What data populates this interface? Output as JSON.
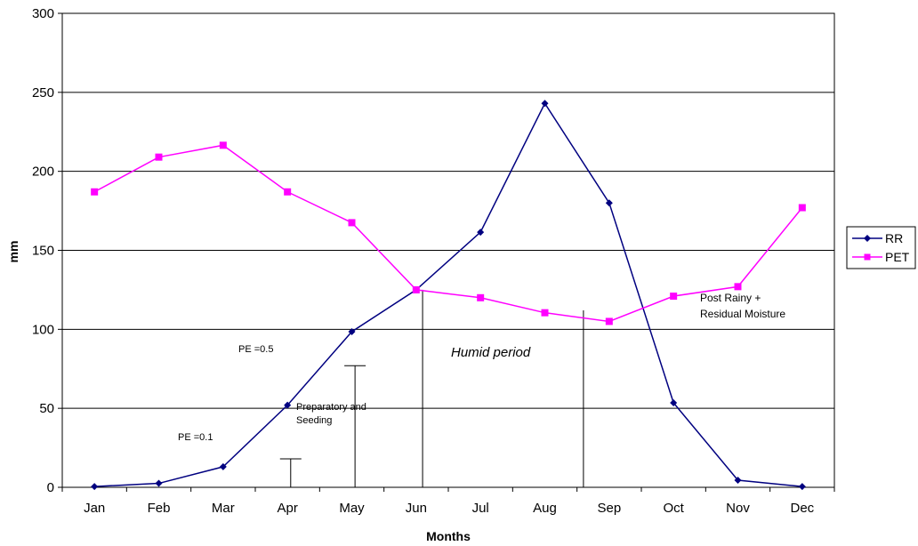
{
  "chart_data": {
    "type": "line",
    "title": "",
    "xlabel": "Months",
    "ylabel": "mm",
    "ylim": [
      0,
      300
    ],
    "yticks": [
      0,
      50,
      100,
      150,
      200,
      250,
      300
    ],
    "grid": "horizontal",
    "legend_position": "right",
    "categories": [
      "Jan",
      "Feb",
      "Mar",
      "Apr",
      "May",
      "Jun",
      "Jul",
      "Aug",
      "Sep",
      "Oct",
      "Nov",
      "Dec"
    ],
    "series": [
      {
        "name": "RR",
        "color": "#000080",
        "marker": "diamond",
        "values": [
          0.5,
          2.5,
          13,
          52,
          98.5,
          125,
          161.5,
          243,
          180,
          53.5,
          4.5,
          0.5
        ]
      },
      {
        "name": "PET",
        "color": "#ff00ff",
        "marker": "square",
        "values": [
          187,
          209,
          216.5,
          187,
          167.5,
          125,
          120,
          110.5,
          105,
          121,
          127,
          177
        ]
      }
    ],
    "annotations": {
      "pe01": "PE =0.1",
      "pe05": "PE =0.5",
      "prep_line1": "Preparatory and",
      "prep_line2": "Seeding",
      "humid": "Humid period",
      "post_line1": "Post Rainy +",
      "post_line2": "Residual Moisture"
    },
    "markers": [
      {
        "category_pos": 3.05,
        "value": 18
      },
      {
        "category_pos": 4.05,
        "value": 77
      },
      {
        "category_pos": 5.1,
        "value": 125
      },
      {
        "category_pos": 7.6,
        "value": 112
      }
    ]
  }
}
